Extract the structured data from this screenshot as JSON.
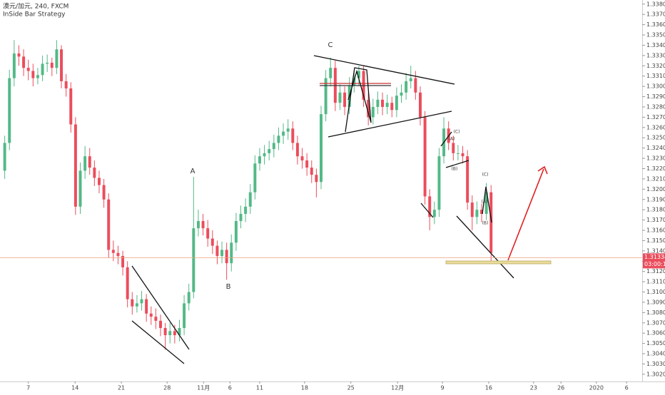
{
  "chart_data": {
    "type": "candlestick",
    "title": "澳元/加元, 240, FXCM",
    "subtitle": "InSide Bar Strategy",
    "up_color": "#53b987",
    "down_color": "#eb4d5c",
    "last_price": 1.31334,
    "last_price_label": "1.31334",
    "countdown": "03:00:11",
    "annotations": [
      "A",
      "B",
      "C",
      "(A)",
      "(B)",
      "(C)",
      "(C)",
      "(A)",
      "(B)"
    ],
    "xlim": [
      -1,
      135
    ],
    "xticks": [
      {
        "value": 5.0,
        "label": "7"
      },
      {
        "value": 14.9,
        "label": "14"
      },
      {
        "value": 24.7,
        "label": "21"
      },
      {
        "value": 34.4,
        "label": "28"
      },
      {
        "value": 42.1,
        "label": "11月"
      },
      {
        "value": 47.7,
        "label": "6"
      },
      {
        "value": 54.0,
        "label": "11"
      },
      {
        "value": 63.5,
        "label": "18"
      },
      {
        "value": 73.3,
        "label": "25"
      },
      {
        "value": 83.2,
        "label": "12月"
      },
      {
        "value": 92.7,
        "label": "9"
      },
      {
        "value": 102.5,
        "label": "16"
      },
      {
        "value": 112.0,
        "label": "23"
      },
      {
        "value": 117.8,
        "label": "26"
      },
      {
        "value": 125.3,
        "label": "2020"
      },
      {
        "value": 131.7,
        "label": "6"
      }
    ],
    "ylim": [
      1.3013,
      1.3384
    ],
    "yticks": [
      {
        "value": 1.302,
        "label": "1.30200"
      },
      {
        "value": 1.303,
        "label": "1.30300"
      },
      {
        "value": 1.304,
        "label": "1.30400"
      },
      {
        "value": 1.305,
        "label": "1.30500"
      },
      {
        "value": 1.306,
        "label": "1.30600"
      },
      {
        "value": 1.307,
        "label": "1.30700"
      },
      {
        "value": 1.308,
        "label": "1.30800"
      },
      {
        "value": 1.309,
        "label": "1.30900"
      },
      {
        "value": 1.31,
        "label": "1.31000"
      },
      {
        "value": 1.311,
        "label": "1.31100"
      },
      {
        "value": 1.312,
        "label": "1.31200"
      },
      {
        "value": 1.313,
        "label": "1.31300"
      },
      {
        "value": 1.314,
        "label": "1.31400"
      },
      {
        "value": 1.315,
        "label": "1.31500"
      },
      {
        "value": 1.316,
        "label": "1.31600"
      },
      {
        "value": 1.317,
        "label": "1.31700"
      },
      {
        "value": 1.318,
        "label": "1.31800"
      },
      {
        "value": 1.319,
        "label": "1.31900"
      },
      {
        "value": 1.32,
        "label": "1.32000"
      },
      {
        "value": 1.321,
        "label": "1.32100"
      },
      {
        "value": 1.322,
        "label": "1.32200"
      },
      {
        "value": 1.323,
        "label": "1.32300"
      },
      {
        "value": 1.324,
        "label": "1.32400"
      },
      {
        "value": 1.325,
        "label": "1.32500"
      },
      {
        "value": 1.326,
        "label": "1.32600"
      },
      {
        "value": 1.327,
        "label": "1.32700"
      },
      {
        "value": 1.328,
        "label": "1.32800"
      },
      {
        "value": 1.329,
        "label": "1.32900"
      },
      {
        "value": 1.33,
        "label": "1.33000"
      },
      {
        "value": 1.331,
        "label": "1.33100"
      },
      {
        "value": 1.332,
        "label": "1.33200"
      },
      {
        "value": 1.333,
        "label": "1.33300"
      },
      {
        "value": 1.334,
        "label": "1.33400"
      },
      {
        "value": 1.335,
        "label": "1.33500"
      },
      {
        "value": 1.336,
        "label": "1.33600"
      },
      {
        "value": 1.337,
        "label": "1.33700"
      },
      {
        "value": 1.338,
        "label": "1.33800"
      }
    ],
    "ohlc": [
      [
        1.3218,
        1.3252,
        1.321,
        1.3245
      ],
      [
        1.3245,
        1.3316,
        1.3238,
        1.3308
      ],
      [
        1.3308,
        1.3345,
        1.33,
        1.3332
      ],
      [
        1.3332,
        1.334,
        1.332,
        1.3329
      ],
      [
        1.3329,
        1.3336,
        1.331,
        1.3318
      ],
      [
        1.3318,
        1.3326,
        1.3306,
        1.3315
      ],
      [
        1.3315,
        1.3322,
        1.33,
        1.3308
      ],
      [
        1.3308,
        1.3318,
        1.3302,
        1.3311
      ],
      [
        1.3311,
        1.333,
        1.3305,
        1.3322
      ],
      [
        1.3322,
        1.3331,
        1.3314,
        1.3323
      ],
      [
        1.3323,
        1.3328,
        1.331,
        1.3318
      ],
      [
        1.3318,
        1.3345,
        1.3312,
        1.3336
      ],
      [
        1.3336,
        1.334,
        1.3298,
        1.3305
      ],
      [
        1.3305,
        1.3312,
        1.329,
        1.3298
      ],
      [
        1.3298,
        1.3304,
        1.3255,
        1.3263
      ],
      [
        1.3263,
        1.327,
        1.3175,
        1.3183
      ],
      [
        1.3183,
        1.3226,
        1.3176,
        1.3218
      ],
      [
        1.3218,
        1.3242,
        1.321,
        1.3232
      ],
      [
        1.3232,
        1.324,
        1.3214,
        1.3221
      ],
      [
        1.3221,
        1.3228,
        1.3203,
        1.3211
      ],
      [
        1.3211,
        1.3218,
        1.3196,
        1.3204
      ],
      [
        1.3204,
        1.321,
        1.3182,
        1.319
      ],
      [
        1.319,
        1.3196,
        1.3133,
        1.3141
      ],
      [
        1.3141,
        1.315,
        1.313,
        1.3138
      ],
      [
        1.3138,
        1.3145,
        1.3127,
        1.3135
      ],
      [
        1.3135,
        1.314,
        1.3116,
        1.3124
      ],
      [
        1.3124,
        1.313,
        1.3085,
        1.3093
      ],
      [
        1.3093,
        1.31,
        1.3078,
        1.3086
      ],
      [
        1.3086,
        1.3097,
        1.308,
        1.3089
      ],
      [
        1.3089,
        1.3101,
        1.3082,
        1.3093
      ],
      [
        1.3093,
        1.3098,
        1.3071,
        1.3079
      ],
      [
        1.3079,
        1.3086,
        1.3068,
        1.3076
      ],
      [
        1.3076,
        1.3084,
        1.3064,
        1.3072
      ],
      [
        1.3072,
        1.3078,
        1.3057,
        1.3065
      ],
      [
        1.3065,
        1.307,
        1.3044,
        1.3058
      ],
      [
        1.3058,
        1.307,
        1.305,
        1.3062
      ],
      [
        1.3062,
        1.3068,
        1.305,
        1.3058
      ],
      [
        1.3058,
        1.3073,
        1.3052,
        1.3065
      ],
      [
        1.3065,
        1.3097,
        1.3058,
        1.3089
      ],
      [
        1.3089,
        1.3108,
        1.3082,
        1.31
      ],
      [
        1.31,
        1.3212,
        1.3094,
        1.3162
      ],
      [
        1.3162,
        1.318,
        1.3154,
        1.3169
      ],
      [
        1.3169,
        1.3176,
        1.3155,
        1.3162
      ],
      [
        1.3162,
        1.317,
        1.3144,
        1.3152
      ],
      [
        1.3152,
        1.316,
        1.3137,
        1.3145
      ],
      [
        1.3145,
        1.315,
        1.3127,
        1.3135
      ],
      [
        1.3135,
        1.3149,
        1.3128,
        1.3141
      ],
      [
        1.3141,
        1.3148,
        1.3112,
        1.3128
      ],
      [
        1.3128,
        1.3156,
        1.312,
        1.3148
      ],
      [
        1.3148,
        1.3177,
        1.314,
        1.3169
      ],
      [
        1.3169,
        1.3184,
        1.3162,
        1.3176
      ],
      [
        1.3176,
        1.3191,
        1.3168,
        1.3183
      ],
      [
        1.3183,
        1.3205,
        1.3176,
        1.3197
      ],
      [
        1.3197,
        1.3233,
        1.319,
        1.3225
      ],
      [
        1.3225,
        1.324,
        1.3218,
        1.3232
      ],
      [
        1.3232,
        1.3243,
        1.3224,
        1.3235
      ],
      [
        1.3235,
        1.3247,
        1.3228,
        1.3239
      ],
      [
        1.3239,
        1.3253,
        1.3231,
        1.3245
      ],
      [
        1.3245,
        1.326,
        1.3238,
        1.3252
      ],
      [
        1.3252,
        1.3264,
        1.3244,
        1.3256
      ],
      [
        1.3256,
        1.3268,
        1.3248,
        1.3259
      ],
      [
        1.3259,
        1.3266,
        1.3238,
        1.3245
      ],
      [
        1.3245,
        1.3252,
        1.3224,
        1.3232
      ],
      [
        1.3232,
        1.324,
        1.322,
        1.3228
      ],
      [
        1.3228,
        1.3235,
        1.3213,
        1.3221
      ],
      [
        1.3221,
        1.3228,
        1.3206,
        1.3214
      ],
      [
        1.3214,
        1.322,
        1.3192,
        1.3207
      ],
      [
        1.3207,
        1.3281,
        1.32,
        1.3273
      ],
      [
        1.3273,
        1.3316,
        1.3266,
        1.3308
      ],
      [
        1.3308,
        1.3328,
        1.33,
        1.3318
      ],
      [
        1.3318,
        1.3325,
        1.3276,
        1.3284
      ],
      [
        1.3284,
        1.3302,
        1.3277,
        1.3294
      ],
      [
        1.3294,
        1.33,
        1.3272,
        1.328
      ],
      [
        1.328,
        1.3309,
        1.3273,
        1.3301
      ],
      [
        1.3301,
        1.3316,
        1.3294,
        1.3308
      ],
      [
        1.3308,
        1.332,
        1.33,
        1.3315
      ],
      [
        1.3315,
        1.332,
        1.328,
        1.3287
      ],
      [
        1.3287,
        1.3294,
        1.3262,
        1.327
      ],
      [
        1.327,
        1.3288,
        1.3263,
        1.328
      ],
      [
        1.328,
        1.3295,
        1.3273,
        1.3287
      ],
      [
        1.3287,
        1.3294,
        1.3272,
        1.328
      ],
      [
        1.328,
        1.3292,
        1.3273,
        1.3284
      ],
      [
        1.3284,
        1.329,
        1.327,
        1.3277
      ],
      [
        1.3277,
        1.3299,
        1.327,
        1.3291
      ],
      [
        1.3291,
        1.3302,
        1.3284,
        1.3294
      ],
      [
        1.3294,
        1.3313,
        1.3287,
        1.3305
      ],
      [
        1.3305,
        1.332,
        1.3298,
        1.3308
      ],
      [
        1.3308,
        1.3315,
        1.3287,
        1.3294
      ],
      [
        1.3294,
        1.33,
        1.3262,
        1.327
      ],
      [
        1.327,
        1.3276,
        1.3185,
        1.3193
      ],
      [
        1.3193,
        1.32,
        1.316,
        1.3173
      ],
      [
        1.3173,
        1.3188,
        1.3166,
        1.318
      ],
      [
        1.318,
        1.324,
        1.3173,
        1.3232
      ],
      [
        1.3232,
        1.327,
        1.3225,
        1.3259
      ],
      [
        1.3259,
        1.3266,
        1.3238,
        1.3245
      ],
      [
        1.3245,
        1.3252,
        1.3228,
        1.3235
      ],
      [
        1.3235,
        1.3243,
        1.3228,
        1.3235
      ],
      [
        1.3235,
        1.3242,
        1.3225,
        1.3232
      ],
      [
        1.3232,
        1.3238,
        1.318,
        1.3187
      ],
      [
        1.3187,
        1.3194,
        1.316,
        1.3173
      ],
      [
        1.3173,
        1.3188,
        1.3166,
        1.318
      ],
      [
        1.318,
        1.3186,
        1.3168,
        1.3176
      ],
      [
        1.3176,
        1.3206,
        1.317,
        1.3197
      ],
      [
        1.3197,
        1.3204,
        1.313,
        1.3138
      ]
    ]
  }
}
